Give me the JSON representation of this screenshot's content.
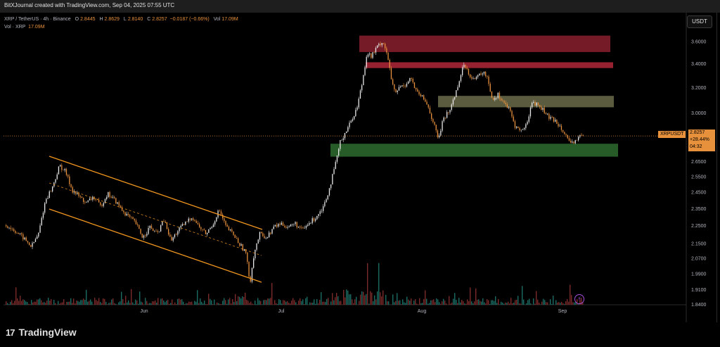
{
  "header": {
    "text": "BitXJournal created with TradingView.com, Sep 04, 2025 07:55 UTC"
  },
  "legend": {
    "symbol": "XRP / TetherUS · 4h · Binance",
    "o_label": "O",
    "o": "2.8445",
    "h_label": "H",
    "h": "2.8629",
    "l_label": "L",
    "l": "2.8140",
    "c_label": "C",
    "c": "2.8257",
    "change": "−0.0187 (−0.66%)",
    "vol_label": "Vol",
    "vol": "17.09M",
    "vol_series": "Vol · XRP",
    "vol_series_value": "17.09M"
  },
  "currency_button": "USDT",
  "price_tag": {
    "symbol": "XRPUSDT",
    "price": "2.8257",
    "pct": "+28.44%",
    "countdown": "04:32"
  },
  "branding": {
    "logo_mark": "17",
    "logo_text": "TradingView"
  },
  "colors": {
    "background": "#000000",
    "candle_up": "#e8e8e8",
    "candle_down": "#e8913c",
    "channel": "#f0961e",
    "zone_red": "#b03040",
    "zone_olive": "#7a7a55",
    "zone_green": "#2e6b2e",
    "price_line": "#e8913c",
    "volume_up": "#1b6b63",
    "volume_down": "#7a2a2a"
  },
  "chart_data": {
    "type": "candlestick",
    "symbol": "XRPUSDT",
    "timeframe": "4h",
    "y_axis": {
      "scale": "log",
      "ticks": [
        "3.6000",
        "3.4000",
        "3.2000",
        "3.0000",
        "2.6500",
        "2.5500",
        "2.4500",
        "2.3500",
        "2.2500",
        "2.1500",
        "2.0700",
        "1.9900",
        "1.9100",
        "1.8400"
      ],
      "range": [
        1.84,
        3.72
      ]
    },
    "x_axis": {
      "ticks": [
        "Jun",
        "Jul",
        "Aug",
        "Sep"
      ]
    },
    "last_price": 2.8257,
    "zones": [
      {
        "name": "resistance-top",
        "low": 3.5,
        "high": 3.65,
        "color": "red"
      },
      {
        "name": "resistance-2",
        "low": 3.36,
        "high": 3.41,
        "color": "red"
      },
      {
        "name": "mid-zone",
        "low": 3.04,
        "high": 3.13,
        "color": "olive"
      },
      {
        "name": "support",
        "low": 2.68,
        "high": 2.77,
        "color": "green"
      }
    ],
    "channel": {
      "type": "descending",
      "start": "late May",
      "end": "late Jun"
    },
    "price_path": [
      [
        0,
        2.25
      ],
      [
        12,
        2.22
      ],
      [
        24,
        2.18
      ],
      [
        36,
        2.13
      ],
      [
        46,
        2.2
      ],
      [
        56,
        2.4
      ],
      [
        66,
        2.48
      ],
      [
        76,
        2.62
      ],
      [
        84,
        2.58
      ],
      [
        94,
        2.46
      ],
      [
        104,
        2.42
      ],
      [
        114,
        2.38
      ],
      [
        124,
        2.42
      ],
      [
        134,
        2.36
      ],
      [
        144,
        2.44
      ],
      [
        154,
        2.4
      ],
      [
        164,
        2.34
      ],
      [
        174,
        2.3
      ],
      [
        184,
        2.26
      ],
      [
        194,
        2.18
      ],
      [
        204,
        2.24
      ],
      [
        214,
        2.2
      ],
      [
        224,
        2.28
      ],
      [
        234,
        2.16
      ],
      [
        244,
        2.22
      ],
      [
        254,
        2.26
      ],
      [
        264,
        2.3
      ],
      [
        274,
        2.24
      ],
      [
        284,
        2.2
      ],
      [
        294,
        2.26
      ],
      [
        302,
        2.34
      ],
      [
        312,
        2.24
      ],
      [
        322,
        2.2
      ],
      [
        332,
        2.14
      ],
      [
        340,
        2.1
      ],
      [
        346,
        1.94
      ],
      [
        352,
        2.1
      ],
      [
        360,
        2.2
      ],
      [
        370,
        2.18
      ],
      [
        380,
        2.24
      ],
      [
        390,
        2.26
      ],
      [
        400,
        2.24
      ],
      [
        410,
        2.26
      ],
      [
        420,
        2.22
      ],
      [
        430,
        2.26
      ],
      [
        440,
        2.3
      ],
      [
        450,
        2.36
      ],
      [
        458,
        2.46
      ],
      [
        466,
        2.6
      ],
      [
        474,
        2.78
      ],
      [
        482,
        2.86
      ],
      [
        490,
        2.94
      ],
      [
        498,
        3.04
      ],
      [
        506,
        3.26
      ],
      [
        512,
        3.5
      ],
      [
        518,
        3.46
      ],
      [
        526,
        3.54
      ],
      [
        534,
        3.6
      ],
      [
        540,
        3.5
      ],
      [
        546,
        3.28
      ],
      [
        552,
        3.14
      ],
      [
        558,
        3.2
      ],
      [
        566,
        3.22
      ],
      [
        574,
        3.28
      ],
      [
        582,
        3.16
      ],
      [
        590,
        3.12
      ],
      [
        598,
        3.06
      ],
      [
        606,
        2.92
      ],
      [
        614,
        2.8
      ],
      [
        620,
        2.96
      ],
      [
        628,
        3.0
      ],
      [
        636,
        3.12
      ],
      [
        644,
        3.28
      ],
      [
        650,
        3.4
      ],
      [
        658,
        3.3
      ],
      [
        666,
        3.26
      ],
      [
        674,
        3.32
      ],
      [
        682,
        3.3
      ],
      [
        690,
        3.1
      ],
      [
        698,
        3.14
      ],
      [
        706,
        3.08
      ],
      [
        714,
        3.02
      ],
      [
        722,
        2.9
      ],
      [
        730,
        2.86
      ],
      [
        738,
        2.9
      ],
      [
        746,
        3.08
      ],
      [
        754,
        3.06
      ],
      [
        762,
        3.02
      ],
      [
        770,
        2.96
      ],
      [
        778,
        2.94
      ],
      [
        786,
        2.9
      ],
      [
        794,
        2.84
      ],
      [
        800,
        2.76
      ],
      [
        806,
        2.78
      ],
      [
        812,
        2.82
      ],
      [
        820,
        2.83
      ]
    ]
  }
}
